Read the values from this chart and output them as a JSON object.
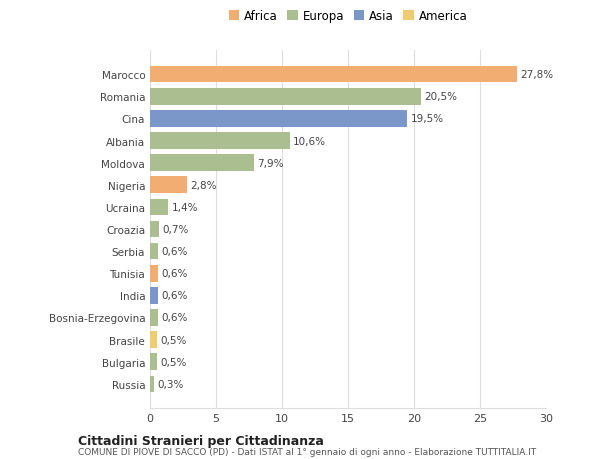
{
  "countries": [
    "Marocco",
    "Romania",
    "Cina",
    "Albania",
    "Moldova",
    "Nigeria",
    "Ucraina",
    "Croazia",
    "Serbia",
    "Tunisia",
    "India",
    "Bosnia-Erzegovina",
    "Brasile",
    "Bulgaria",
    "Russia"
  ],
  "values": [
    27.8,
    20.5,
    19.5,
    10.6,
    7.9,
    2.8,
    1.4,
    0.7,
    0.6,
    0.6,
    0.6,
    0.6,
    0.5,
    0.5,
    0.3
  ],
  "labels": [
    "27,8%",
    "20,5%",
    "19,5%",
    "10,6%",
    "7,9%",
    "2,8%",
    "1,4%",
    "0,7%",
    "0,6%",
    "0,6%",
    "0,6%",
    "0,6%",
    "0,5%",
    "0,5%",
    "0,3%"
  ],
  "continents": [
    "Africa",
    "Europa",
    "Asia",
    "Europa",
    "Europa",
    "Africa",
    "Europa",
    "Europa",
    "Europa",
    "Africa",
    "Asia",
    "Europa",
    "America",
    "Europa",
    "Europa"
  ],
  "colors": {
    "Africa": "#F2AE72",
    "Europa": "#ABBE90",
    "Asia": "#7B96C8",
    "America": "#F0CC70"
  },
  "legend_order": [
    "Africa",
    "Europa",
    "Asia",
    "America"
  ],
  "title1": "Cittadini Stranieri per Cittadinanza",
  "title2": "COMUNE DI PIOVE DI SACCO (PD) - Dati ISTAT al 1° gennaio di ogni anno - Elaborazione TUTTITALIA.IT",
  "xlim": [
    0,
    30
  ],
  "xticks": [
    0,
    5,
    10,
    15,
    20,
    25,
    30
  ],
  "bg_color": "#ffffff",
  "grid_color": "#dddddd"
}
